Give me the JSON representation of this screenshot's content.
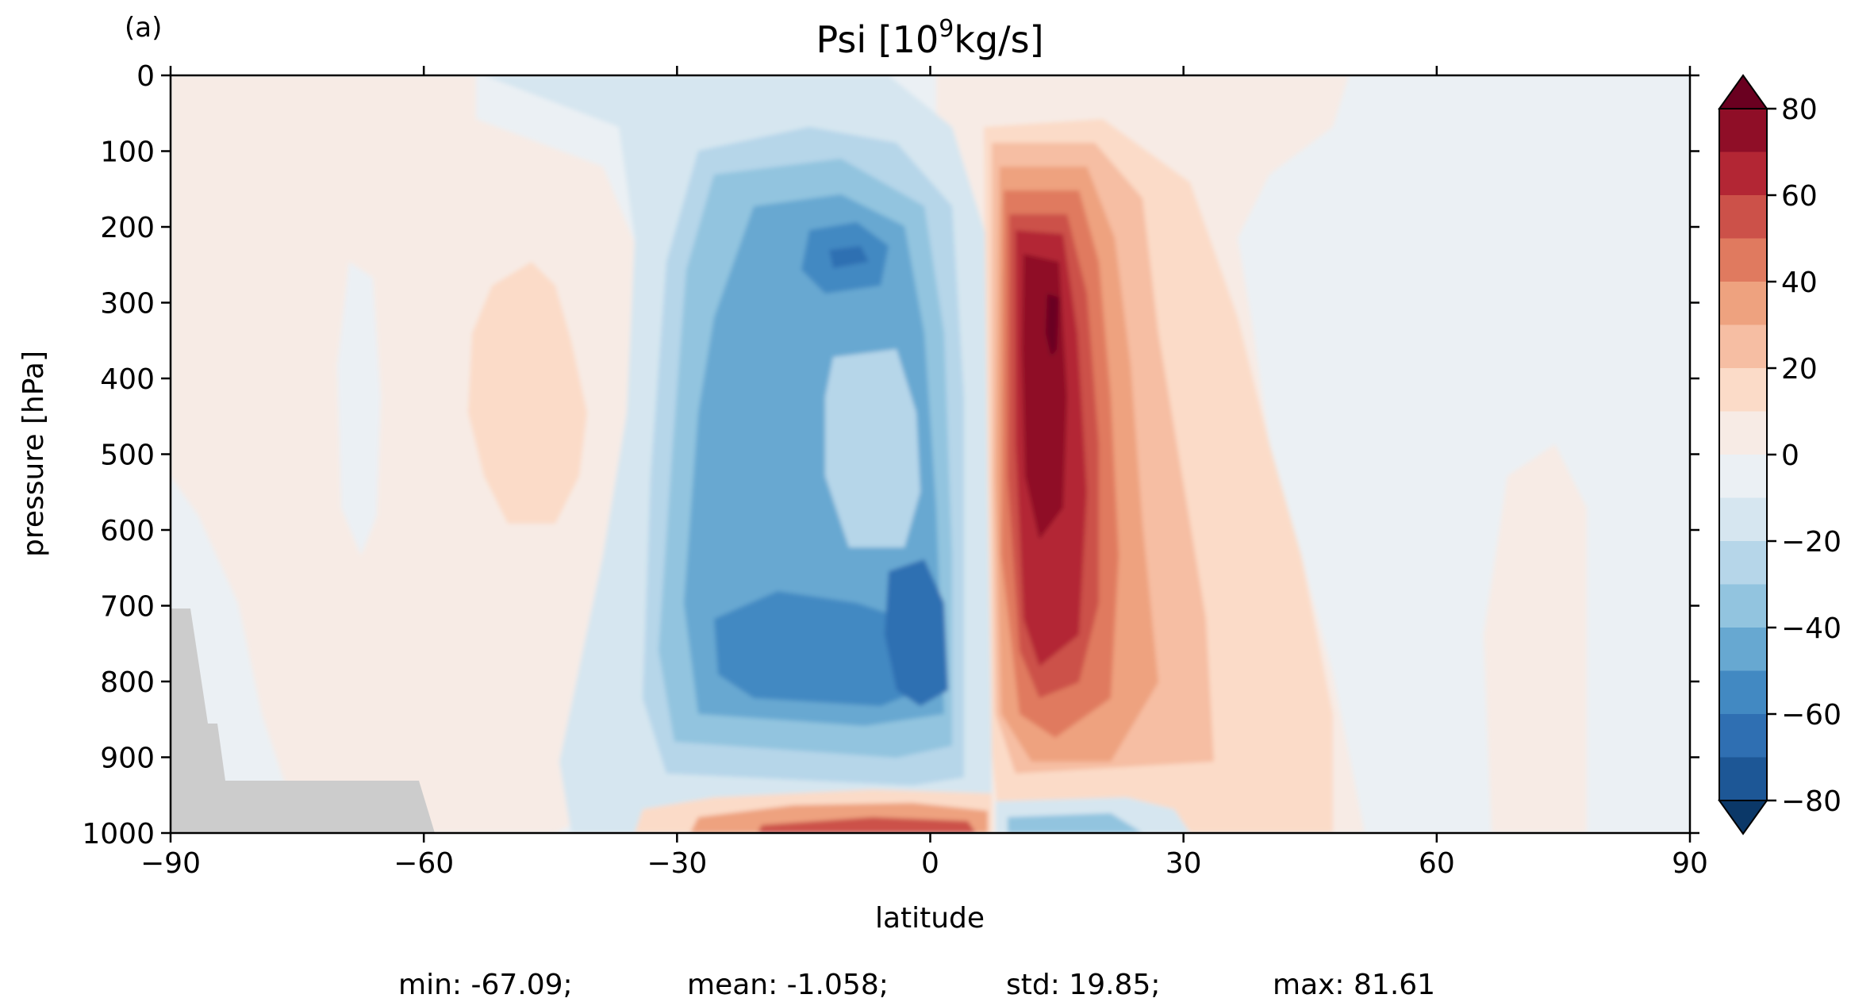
{
  "panel_label": "(a)",
  "chart_data": {
    "type": "heatmap",
    "title_main": "Psi [10",
    "title_exp": "9",
    "title_unit": "kg/s]",
    "xlabel": "latitude",
    "ylabel": "pressure [hPa]",
    "xlim": [
      -90,
      90
    ],
    "ylim": [
      1000,
      0
    ],
    "xticks": [
      -90,
      -60,
      -30,
      0,
      30,
      60,
      90
    ],
    "xtick_labels": [
      "−90",
      "−60",
      "−30",
      "0",
      "30",
      "60",
      "90"
    ],
    "yticks": [
      0,
      100,
      200,
      300,
      400,
      500,
      600,
      700,
      800,
      900,
      1000
    ],
    "ytick_labels": [
      "0",
      "100",
      "200",
      "300",
      "400",
      "500",
      "600",
      "700",
      "800",
      "900",
      "1000"
    ],
    "colorbar": {
      "levels": [
        -80,
        -70,
        -60,
        -50,
        -40,
        -30,
        -20,
        -10,
        0,
        10,
        20,
        30,
        40,
        50,
        60,
        70,
        80
      ],
      "ticks": [
        80,
        60,
        40,
        20,
        0,
        -20,
        -40,
        -60,
        -80
      ],
      "tick_labels": [
        "80",
        "60",
        "40",
        "20",
        "0",
        "−20",
        "−40",
        "−60",
        "−80"
      ],
      "colors": [
        "#0b3868",
        "#1d5796",
        "#2f6fb2",
        "#4289c2",
        "#67a8d1",
        "#92c4df",
        "#b6d6e9",
        "#d6e6f0",
        "#ebf0f4",
        "#f7ebe5",
        "#fbdbc8",
        "#f6bea3",
        "#eea27f",
        "#e07a5f",
        "#cc5149",
        "#b32634",
        "#8f0e27",
        "#6a0020"
      ],
      "extend": "both"
    },
    "cells": [
      {
        "lat": -75,
        "p": 400,
        "value": 3
      },
      {
        "lat": -60,
        "p": 450,
        "value": 6
      },
      {
        "lat": -48,
        "p": 420,
        "value": 12
      },
      {
        "lat": -40,
        "p": 350,
        "value": 5
      },
      {
        "lat": 55,
        "p": 600,
        "value": -4
      },
      {
        "lat": 75,
        "p": 500,
        "value": -3
      },
      {
        "lat": -18,
        "p": 500,
        "value": -40
      },
      {
        "lat": -8,
        "p": 450,
        "value": -25
      },
      {
        "lat": -3,
        "p": 780,
        "value": -67.09
      },
      {
        "lat": -8,
        "p": 250,
        "value": -58
      },
      {
        "lat": 15,
        "p": 300,
        "value": 81.61
      },
      {
        "lat": 15,
        "p": 550,
        "value": 72
      },
      {
        "lat": 23,
        "p": 500,
        "value": 40
      },
      {
        "lat": 30,
        "p": 650,
        "value": 25
      },
      {
        "lat": -5,
        "p": 990,
        "value": 50
      },
      {
        "lat": 12,
        "p": 990,
        "value": -45
      }
    ],
    "masked_terrain": "gray",
    "stats": [
      {
        "label": "min: -67.09;"
      },
      {
        "label": "mean: -1.058;"
      },
      {
        "label": "std: 19.85;"
      },
      {
        "label": "max: 81.61"
      }
    ]
  }
}
